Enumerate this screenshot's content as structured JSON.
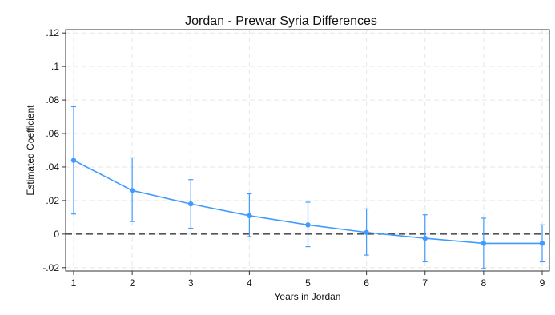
{
  "chart_data": {
    "type": "line",
    "title": "Jordan - Prewar Syria Differences",
    "xlabel": "Years in Jordan",
    "ylabel": "Estimated Coefficient",
    "x": [
      1,
      2,
      3,
      4,
      5,
      6,
      7,
      8,
      9
    ],
    "series": [
      {
        "values": [
          0.044,
          0.026,
          0.018,
          0.011,
          0.0055,
          0.001,
          -0.0025,
          -0.0055,
          -0.0055
        ],
        "ci_lower": [
          0.012,
          0.0075,
          0.0035,
          -0.0015,
          -0.0075,
          -0.0125,
          -0.0165,
          -0.0205,
          -0.0165
        ],
        "ci_upper": [
          0.076,
          0.0455,
          0.0325,
          0.024,
          0.019,
          0.015,
          0.0115,
          0.0095,
          0.0055
        ],
        "color": "#3f9bff"
      }
    ],
    "reference_line": {
      "y": 0,
      "style": "dashed",
      "color": "#555555"
    },
    "xlim": [
      1,
      9
    ],
    "ylim": [
      -0.022,
      0.122
    ],
    "x_ticks": [
      1,
      2,
      3,
      4,
      5,
      6,
      7,
      8,
      9
    ],
    "x_tick_labels": [
      "1",
      "2",
      "3",
      "4",
      "5",
      "6",
      "7",
      "8",
      "9"
    ],
    "y_ticks": [
      -0.02,
      0,
      0.02,
      0.04,
      0.06,
      0.08,
      0.1,
      0.12
    ],
    "y_tick_labels": [
      "-.02",
      "0",
      ".02",
      ".04",
      ".06",
      ".08",
      ".1",
      ".12"
    ],
    "grid": true,
    "grid_color": "#e6e6e6",
    "legend": "none"
  }
}
